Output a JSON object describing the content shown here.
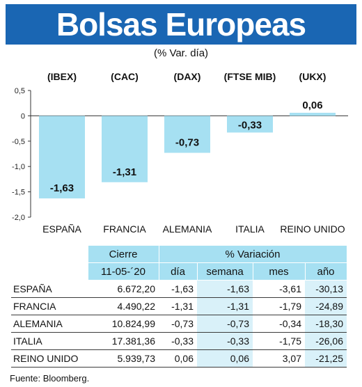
{
  "header": {
    "title": "Bolsas Europeas",
    "subtitle": "(% Var. día)"
  },
  "chart_data": {
    "type": "bar",
    "categories": [
      "ESPAÑA",
      "FRANCIA",
      "ALEMANIA",
      "ITALIA",
      "REINO UNIDO"
    ],
    "index_labels": [
      "(IBEX)",
      "(CAC)",
      "(DAX)",
      "(FTSE MIB)",
      "(UKX)"
    ],
    "values": [
      -1.63,
      -1.31,
      -0.73,
      -0.33,
      0.06
    ],
    "value_labels": [
      "-1,63",
      "-1,31",
      "-0,73",
      "-0,33",
      "0,06"
    ],
    "y_ticks": [
      0.5,
      0,
      -0.5,
      -1.0,
      -1.5,
      -2.0
    ],
    "y_tick_labels": [
      "0,5",
      "0",
      "-0,5",
      "-1,0",
      "-1,5",
      "-2,0"
    ],
    "ylim": [
      -2.0,
      0.5
    ],
    "bar_color": "#a6e0f2",
    "grid": false
  },
  "table": {
    "header_cierre": "Cierre",
    "header_variacion": "% Variación",
    "header_date": "11-05-´20",
    "columns": [
      "día",
      "semana",
      "mes",
      "año"
    ],
    "rows": [
      {
        "name": "ESPAÑA",
        "cierre": "6.672,20",
        "dia": "-1,63",
        "semana": "-1,63",
        "mes": "-3,61",
        "anio": "-30,13"
      },
      {
        "name": "FRANCIA",
        "cierre": "4.490,22",
        "dia": "-1,31",
        "semana": "-1,31",
        "mes": "-1,79",
        "anio": "-24,89"
      },
      {
        "name": "ALEMANIA",
        "cierre": "10.824,99",
        "dia": "-0,73",
        "semana": "-0,73",
        "mes": "-0,34",
        "anio": "-18,30"
      },
      {
        "name": "ITALIA",
        "cierre": "17.381,36",
        "dia": "-0,33",
        "semana": "-0,33",
        "mes": "-1,75",
        "anio": "-26,06"
      },
      {
        "name": "REINO UNIDO",
        "cierre": "5.939,73",
        "dia": "0,06",
        "semana": "0,06",
        "mes": "3,07",
        "anio": "-21,25"
      }
    ]
  },
  "colors": {
    "title_bg": "#1a66b3",
    "table_header_bg": "#a6e0f2",
    "table_shade": "#d9f1f9"
  },
  "source": "Fuente: Bloomberg."
}
